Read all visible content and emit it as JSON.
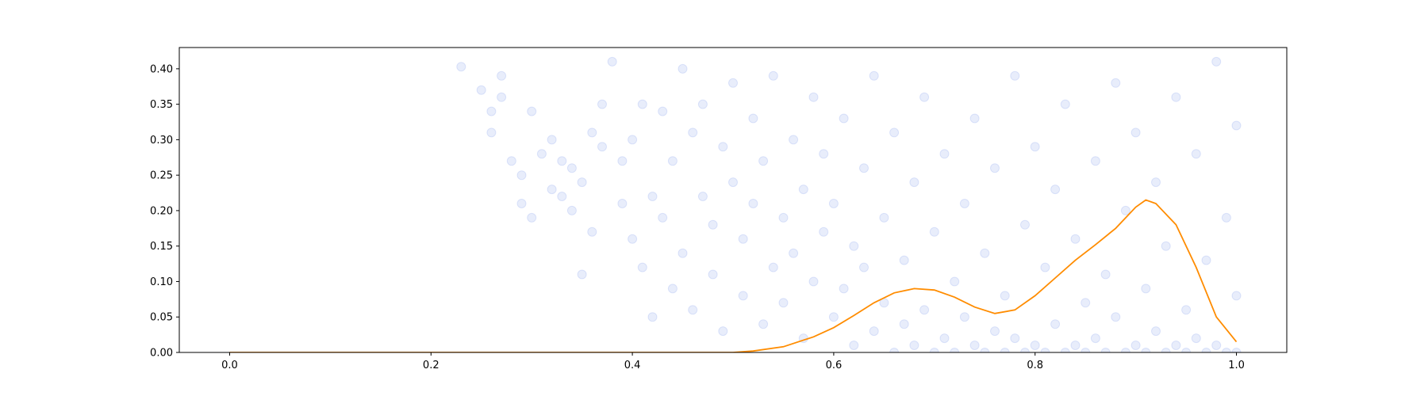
{
  "chart_data": {
    "type": "scatter",
    "title": "",
    "xlabel": "",
    "ylabel": "",
    "xlim": [
      -0.05,
      1.05
    ],
    "ylim": [
      0.0,
      0.43
    ],
    "x_ticks": [
      0.0,
      0.2,
      0.4,
      0.6,
      0.8,
      1.0
    ],
    "x_tick_labels": [
      "0.0",
      "0.2",
      "0.4",
      "0.6",
      "0.8",
      "1.0"
    ],
    "y_ticks": [
      0.0,
      0.05,
      0.1,
      0.15,
      0.2,
      0.25,
      0.3,
      0.35,
      0.4
    ],
    "y_tick_labels": [
      "0.00",
      "0.05",
      "0.10",
      "0.15",
      "0.20",
      "0.25",
      "0.30",
      "0.35",
      "0.40"
    ],
    "grid": false,
    "legend": "none",
    "series": [
      {
        "kind": "scatter",
        "color": "#4169e1",
        "alpha": 0.12,
        "points": [
          [
            0.23,
            0.403
          ],
          [
            0.25,
            0.37
          ],
          [
            0.26,
            0.34
          ],
          [
            0.26,
            0.31
          ],
          [
            0.27,
            0.36
          ],
          [
            0.27,
            0.39
          ],
          [
            0.28,
            0.27
          ],
          [
            0.29,
            0.25
          ],
          [
            0.29,
            0.21
          ],
          [
            0.3,
            0.34
          ],
          [
            0.3,
            0.19
          ],
          [
            0.31,
            0.28
          ],
          [
            0.32,
            0.3
          ],
          [
            0.32,
            0.23
          ],
          [
            0.33,
            0.27
          ],
          [
            0.33,
            0.22
          ],
          [
            0.34,
            0.26
          ],
          [
            0.34,
            0.2
          ],
          [
            0.35,
            0.24
          ],
          [
            0.35,
            0.11
          ],
          [
            0.36,
            0.17
          ],
          [
            0.36,
            0.31
          ],
          [
            0.37,
            0.35
          ],
          [
            0.37,
            0.29
          ],
          [
            0.38,
            0.41
          ],
          [
            0.39,
            0.27
          ],
          [
            0.39,
            0.21
          ],
          [
            0.4,
            0.3
          ],
          [
            0.4,
            0.16
          ],
          [
            0.41,
            0.35
          ],
          [
            0.41,
            0.12
          ],
          [
            0.42,
            0.22
          ],
          [
            0.42,
            0.05
          ],
          [
            0.43,
            0.34
          ],
          [
            0.43,
            0.19
          ],
          [
            0.44,
            0.09
          ],
          [
            0.44,
            0.27
          ],
          [
            0.45,
            0.4
          ],
          [
            0.45,
            0.14
          ],
          [
            0.46,
            0.31
          ],
          [
            0.46,
            0.06
          ],
          [
            0.47,
            0.22
          ],
          [
            0.47,
            0.35
          ],
          [
            0.48,
            0.11
          ],
          [
            0.48,
            0.18
          ],
          [
            0.49,
            0.29
          ],
          [
            0.49,
            0.03
          ],
          [
            0.5,
            0.24
          ],
          [
            0.5,
            0.38
          ],
          [
            0.51,
            0.08
          ],
          [
            0.51,
            0.16
          ],
          [
            0.52,
            0.33
          ],
          [
            0.52,
            0.21
          ],
          [
            0.53,
            0.04
          ],
          [
            0.53,
            0.27
          ],
          [
            0.54,
            0.12
          ],
          [
            0.54,
            0.39
          ],
          [
            0.55,
            0.19
          ],
          [
            0.55,
            0.07
          ],
          [
            0.56,
            0.3
          ],
          [
            0.56,
            0.14
          ],
          [
            0.57,
            0.23
          ],
          [
            0.57,
            0.02
          ],
          [
            0.58,
            0.36
          ],
          [
            0.58,
            0.1
          ],
          [
            0.59,
            0.17
          ],
          [
            0.59,
            0.28
          ],
          [
            0.6,
            0.05
          ],
          [
            0.6,
            0.21
          ],
          [
            0.61,
            0.33
          ],
          [
            0.61,
            0.09
          ],
          [
            0.62,
            0.15
          ],
          [
            0.62,
            0.01
          ],
          [
            0.63,
            0.26
          ],
          [
            0.63,
            0.12
          ],
          [
            0.64,
            0.39
          ],
          [
            0.64,
            0.03
          ],
          [
            0.65,
            0.19
          ],
          [
            0.65,
            0.07
          ],
          [
            0.66,
            0.31
          ],
          [
            0.66,
            0.0
          ],
          [
            0.67,
            0.13
          ],
          [
            0.67,
            0.04
          ],
          [
            0.68,
            0.24
          ],
          [
            0.68,
            0.01
          ],
          [
            0.69,
            0.36
          ],
          [
            0.69,
            0.06
          ],
          [
            0.7,
            0.17
          ],
          [
            0.7,
            0.0
          ],
          [
            0.71,
            0.28
          ],
          [
            0.71,
            0.02
          ],
          [
            0.72,
            0.1
          ],
          [
            0.72,
            0.0
          ],
          [
            0.73,
            0.21
          ],
          [
            0.73,
            0.05
          ],
          [
            0.74,
            0.33
          ],
          [
            0.74,
            0.01
          ],
          [
            0.75,
            0.14
          ],
          [
            0.75,
            0.0
          ],
          [
            0.76,
            0.26
          ],
          [
            0.76,
            0.03
          ],
          [
            0.77,
            0.08
          ],
          [
            0.77,
            0.0
          ],
          [
            0.78,
            0.39
          ],
          [
            0.78,
            0.02
          ],
          [
            0.79,
            0.18
          ],
          [
            0.79,
            0.0
          ],
          [
            0.8,
            0.29
          ],
          [
            0.8,
            0.01
          ],
          [
            0.81,
            0.12
          ],
          [
            0.81,
            0.0
          ],
          [
            0.82,
            0.23
          ],
          [
            0.82,
            0.04
          ],
          [
            0.83,
            0.35
          ],
          [
            0.83,
            0.0
          ],
          [
            0.84,
            0.16
          ],
          [
            0.84,
            0.01
          ],
          [
            0.85,
            0.07
          ],
          [
            0.85,
            0.0
          ],
          [
            0.86,
            0.27
          ],
          [
            0.86,
            0.02
          ],
          [
            0.87,
            0.11
          ],
          [
            0.87,
            0.0
          ],
          [
            0.88,
            0.38
          ],
          [
            0.88,
            0.05
          ],
          [
            0.89,
            0.2
          ],
          [
            0.89,
            0.0
          ],
          [
            0.9,
            0.31
          ],
          [
            0.9,
            0.01
          ],
          [
            0.91,
            0.09
          ],
          [
            0.91,
            0.0
          ],
          [
            0.92,
            0.24
          ],
          [
            0.92,
            0.03
          ],
          [
            0.93,
            0.15
          ],
          [
            0.93,
            0.0
          ],
          [
            0.94,
            0.36
          ],
          [
            0.94,
            0.01
          ],
          [
            0.95,
            0.06
          ],
          [
            0.95,
            0.0
          ],
          [
            0.96,
            0.28
          ],
          [
            0.96,
            0.02
          ],
          [
            0.97,
            0.13
          ],
          [
            0.97,
            0.0
          ],
          [
            0.98,
            0.41
          ],
          [
            0.98,
            0.01
          ],
          [
            0.99,
            0.19
          ],
          [
            0.99,
            0.0
          ],
          [
            1.0,
            0.32
          ],
          [
            1.0,
            0.0
          ],
          [
            1.0,
            0.08
          ]
        ]
      },
      {
        "kind": "line",
        "color": "#ff8c00",
        "points": [
          [
            0.0,
            0.0
          ],
          [
            0.4,
            0.0
          ],
          [
            0.5,
            0.0
          ],
          [
            0.52,
            0.002
          ],
          [
            0.55,
            0.008
          ],
          [
            0.58,
            0.022
          ],
          [
            0.6,
            0.035
          ],
          [
            0.62,
            0.052
          ],
          [
            0.64,
            0.07
          ],
          [
            0.66,
            0.084
          ],
          [
            0.68,
            0.09
          ],
          [
            0.7,
            0.088
          ],
          [
            0.72,
            0.078
          ],
          [
            0.74,
            0.064
          ],
          [
            0.76,
            0.055
          ],
          [
            0.78,
            0.06
          ],
          [
            0.8,
            0.08
          ],
          [
            0.82,
            0.105
          ],
          [
            0.84,
            0.13
          ],
          [
            0.86,
            0.152
          ],
          [
            0.88,
            0.175
          ],
          [
            0.9,
            0.205
          ],
          [
            0.91,
            0.215
          ],
          [
            0.92,
            0.21
          ],
          [
            0.94,
            0.18
          ],
          [
            0.96,
            0.12
          ],
          [
            0.98,
            0.05
          ],
          [
            1.0,
            0.015
          ]
        ]
      }
    ]
  }
}
